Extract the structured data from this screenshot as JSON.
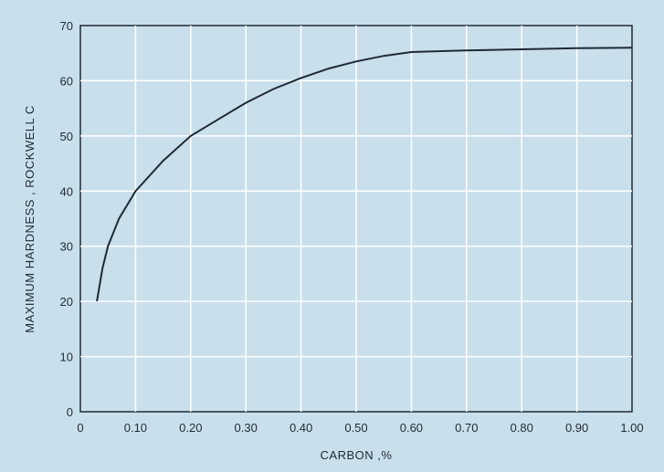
{
  "chart_data": {
    "type": "line",
    "title": "",
    "xlabel": "CARBON ,%",
    "ylabel": "MAXIMUM HARDNESS , ROCKWELL C",
    "xlim": [
      0,
      1.0
    ],
    "ylim": [
      0,
      70
    ],
    "xticks": [
      "0",
      "0.10",
      "0.20",
      "0.30",
      "0.40",
      "0.50",
      "0.60",
      "0.70",
      "0.80",
      "0.90",
      "1.00"
    ],
    "yticks": [
      "0",
      "10",
      "20",
      "30",
      "40",
      "50",
      "60",
      "70"
    ],
    "grid": true,
    "colors": {
      "background": "#c9dfec",
      "line": "#1f2a33",
      "grid": "#ffffff"
    },
    "series": [
      {
        "x": [
          0.03,
          0.04,
          0.05,
          0.07,
          0.1,
          0.15,
          0.2,
          0.25,
          0.3,
          0.35,
          0.4,
          0.45,
          0.5,
          0.55,
          0.6,
          0.7,
          0.8,
          0.9,
          1.0
        ],
        "y": [
          20,
          26,
          30,
          35,
          40,
          45.5,
          50,
          53,
          56,
          58.5,
          60.5,
          62.2,
          63.5,
          64.5,
          65.2,
          65.5,
          65.7,
          65.9,
          66
        ]
      }
    ]
  }
}
